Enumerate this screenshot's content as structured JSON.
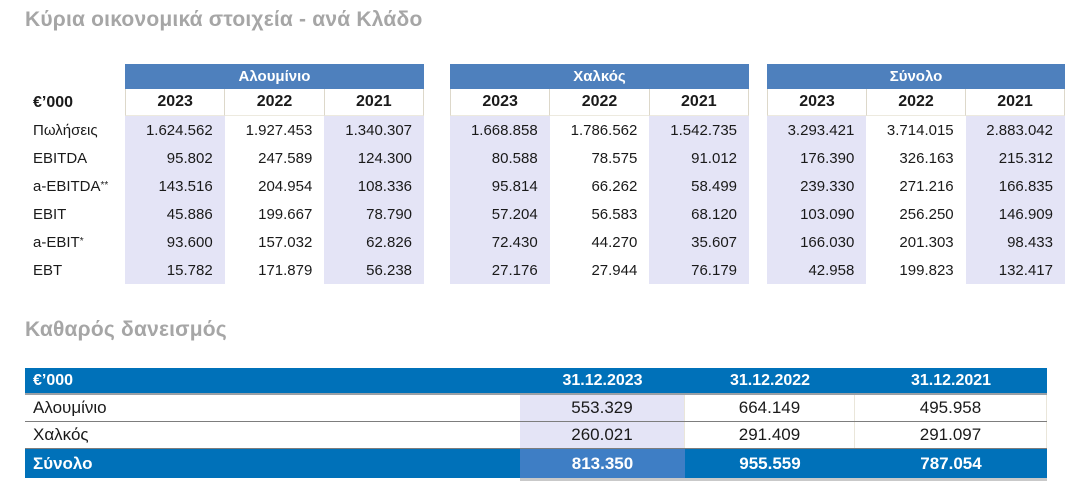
{
  "section1": {
    "title": "Κύρια οικονομικά στοιχεία - ανά Κλάδο",
    "unit_label": "€’000",
    "groups": [
      {
        "name": "Αλουμίνιο",
        "years": [
          "2023",
          "2022",
          "2021"
        ]
      },
      {
        "name": "Χαλκός",
        "years": [
          "2023",
          "2022",
          "2021"
        ]
      },
      {
        "name": "Σύνολο",
        "years": [
          "2023",
          "2022",
          "2021"
        ]
      }
    ],
    "rows": [
      {
        "label": "Πωλήσεις",
        "sup": "",
        "values": [
          [
            "1.624.562",
            "1.927.453",
            "1.340.307"
          ],
          [
            "1.668.858",
            "1.786.562",
            "1.542.735"
          ],
          [
            "3.293.421",
            "3.714.015",
            "2.883.042"
          ]
        ]
      },
      {
        "label": "EBITDA",
        "sup": "",
        "values": [
          [
            "95.802",
            "247.589",
            "124.300"
          ],
          [
            "80.588",
            "78.575",
            "91.012"
          ],
          [
            "176.390",
            "326.163",
            "215.312"
          ]
        ]
      },
      {
        "label": "a-EBITDA",
        "sup": "**",
        "values": [
          [
            "143.516",
            "204.954",
            "108.336"
          ],
          [
            "95.814",
            "66.262",
            "58.499"
          ],
          [
            "239.330",
            "271.216",
            "166.835"
          ]
        ]
      },
      {
        "label": "EBIT",
        "sup": "",
        "values": [
          [
            "45.886",
            "199.667",
            "78.790"
          ],
          [
            "57.204",
            "56.583",
            "68.120"
          ],
          [
            "103.090",
            "256.250",
            "146.909"
          ]
        ]
      },
      {
        "label": "a-EBIT",
        "sup": "*",
        "values": [
          [
            "93.600",
            "157.032",
            "62.826"
          ],
          [
            "72.430",
            "44.270",
            "35.607"
          ],
          [
            "166.030",
            "201.303",
            "98.433"
          ]
        ]
      },
      {
        "label": "EBT",
        "sup": "",
        "values": [
          [
            "15.782",
            "171.879",
            "56.238"
          ],
          [
            "27.176",
            "27.944",
            "76.179"
          ],
          [
            "42.958",
            "199.823",
            "132.417"
          ]
        ]
      }
    ]
  },
  "section2": {
    "title": "Καθαρός δανεισμός",
    "unit_label": "€’000",
    "columns": [
      "31.12.2023",
      "31.12.2022",
      "31.12.2021"
    ],
    "rows": [
      {
        "label": "Αλουμίνιο",
        "values": [
          "553.329",
          "664.149",
          "495.958"
        ]
      },
      {
        "label": "Χαλκός",
        "values": [
          "260.021",
          "291.409",
          "291.097"
        ]
      }
    ],
    "total_row": {
      "label": "Σύνολο",
      "values": [
        "813.350",
        "955.559",
        "787.054"
      ]
    }
  },
  "colors": {
    "group_header_blue": "#4e80bd",
    "table2_header_blue": "#0071b9",
    "table2_total_2023_cell_blue": "#3e7ec5",
    "highlight_lavender": "#e4e4f6",
    "title_gray": "#a6a6a6"
  }
}
